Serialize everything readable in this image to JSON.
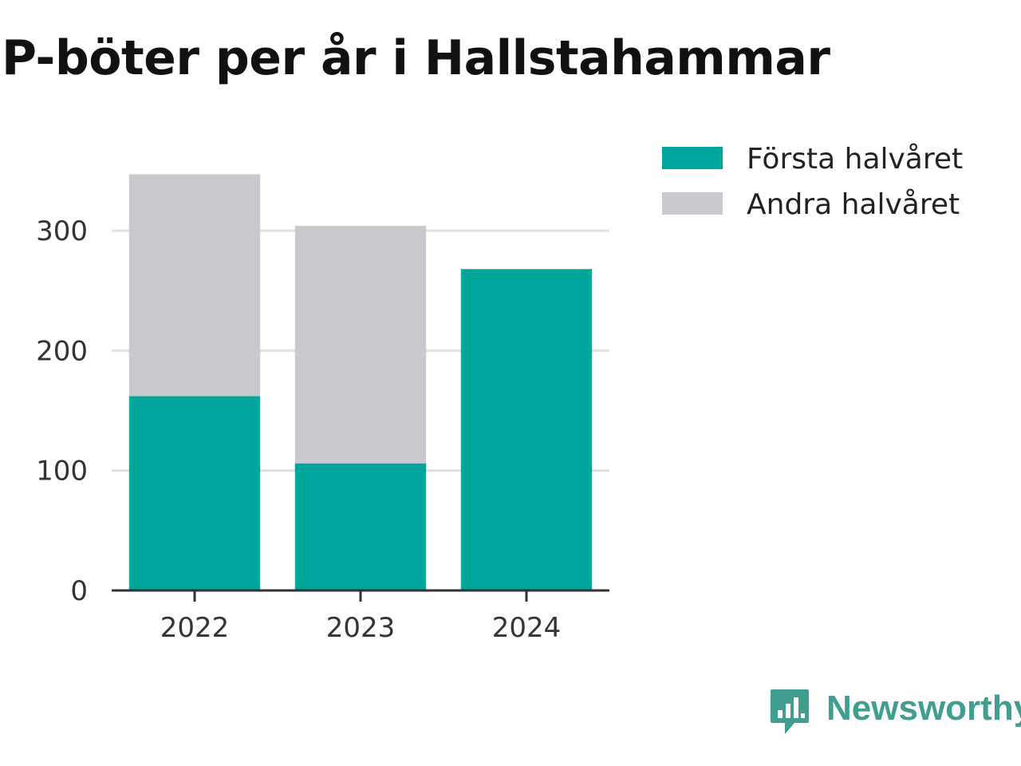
{
  "chart_data": {
    "type": "bar",
    "stacked": true,
    "title": "P-böter per år i Hallstahammar",
    "categories": [
      "2022",
      "2023",
      "2024"
    ],
    "series": [
      {
        "name": "Första halvåret",
        "color": "#00a59b",
        "values": [
          162,
          106,
          268
        ]
      },
      {
        "name": "Andra halvåret",
        "color": "#c8c8ce",
        "values": [
          185,
          198,
          0
        ]
      }
    ],
    "yticks": [
      "0",
      "100",
      "200",
      "300"
    ],
    "ylim": [
      0,
      350
    ],
    "grid": true,
    "legend_position": "right"
  },
  "branding": {
    "logo_text": "Newsworthy",
    "logo_color": "#3f9e90"
  }
}
